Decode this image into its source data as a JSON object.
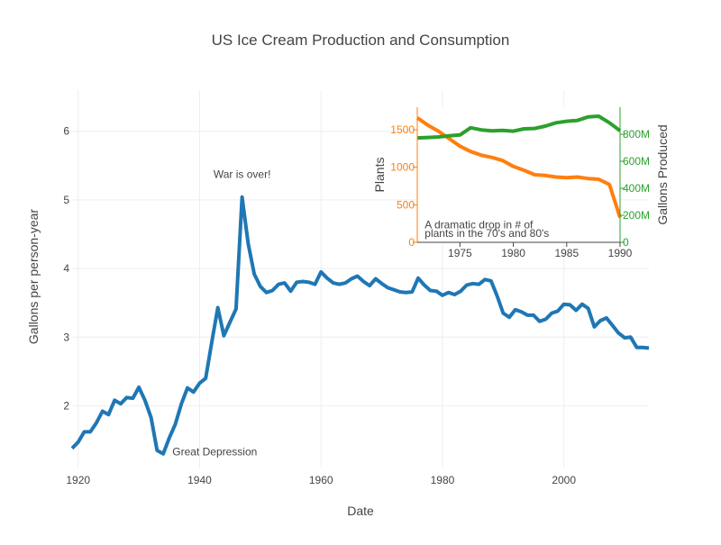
{
  "chart_data": [
    {
      "type": "line",
      "title": "US Ice Cream Production and Consumption",
      "xlabel": "Date",
      "ylabel": "Gallons per person-year",
      "xlim": [
        1919,
        2014
      ],
      "ylim": [
        1.1,
        6.6
      ],
      "xticks": [
        1920,
        1940,
        1960,
        1980,
        2000
      ],
      "yticks": [
        2,
        3,
        4,
        5,
        6
      ],
      "grid": true,
      "series": [
        {
          "color": "#1f77b4",
          "x": [
            1919,
            1920,
            1921,
            1922,
            1923,
            1924,
            1925,
            1926,
            1927,
            1928,
            1929,
            1930,
            1931,
            1932,
            1933,
            1934,
            1935,
            1936,
            1937,
            1938,
            1939,
            1940,
            1941,
            1942,
            1943,
            1944,
            1945,
            1946,
            1947,
            1948,
            1949,
            1950,
            1951,
            1952,
            1953,
            1954,
            1955,
            1956,
            1957,
            1958,
            1959,
            1960,
            1961,
            1962,
            1963,
            1964,
            1965,
            1966,
            1967,
            1968,
            1969,
            1970,
            1971,
            1972,
            1973,
            1974,
            1975,
            1976,
            1977,
            1978,
            1979,
            1980,
            1981,
            1982,
            1983,
            1984,
            1985,
            1986,
            1987,
            1988,
            1989,
            1990,
            1991,
            1992,
            1993,
            1994,
            1995,
            1996,
            1997,
            1998,
            1999,
            2000,
            2001,
            2002,
            2003,
            2004,
            2005,
            2006,
            2007,
            2008,
            2009,
            2010,
            2011,
            2012,
            2013,
            2014
          ],
          "y": [
            1.38,
            1.47,
            1.62,
            1.62,
            1.75,
            1.92,
            1.87,
            2.08,
            2.03,
            2.12,
            2.11,
            2.27,
            2.08,
            1.83,
            1.35,
            1.3,
            1.53,
            1.73,
            2.03,
            2.26,
            2.2,
            2.33,
            2.4,
            2.92,
            3.43,
            3.02,
            3.22,
            3.41,
            5.04,
            4.36,
            3.92,
            3.74,
            3.65,
            3.68,
            3.77,
            3.79,
            3.67,
            3.8,
            3.81,
            3.8,
            3.77,
            3.95,
            3.86,
            3.79,
            3.77,
            3.79,
            3.85,
            3.89,
            3.81,
            3.75,
            3.85,
            3.78,
            3.72,
            3.69,
            3.66,
            3.65,
            3.66,
            3.86,
            3.76,
            3.68,
            3.67,
            3.61,
            3.65,
            3.62,
            3.67,
            3.76,
            3.78,
            3.77,
            3.84,
            3.82,
            3.6,
            3.35,
            3.29,
            3.4,
            3.37,
            3.32,
            3.32,
            3.23,
            3.26,
            3.35,
            3.38,
            3.48,
            3.47,
            3.39,
            3.48,
            3.42,
            3.15,
            3.24,
            3.28,
            3.17,
            3.06,
            2.99,
            3.0,
            2.85,
            2.85,
            2.84
          ]
        }
      ],
      "annotations": [
        {
          "text": "War is over!",
          "x": 1947,
          "y": 5.37
        },
        {
          "text": "Great Depression",
          "x": 1942.5,
          "y": 1.33
        }
      ]
    },
    {
      "type": "line",
      "x_range": [
        1971,
        1990
      ],
      "xticks": [
        1975,
        1980,
        1985,
        1990
      ],
      "y_left": {
        "label": "Plants",
        "range": [
          0,
          1800
        ],
        "ticks": [
          0,
          500,
          1000,
          1500
        ],
        "color": "#ff7f0e"
      },
      "y_right": {
        "label": "Gallons Produced",
        "range": [
          0,
          1000
        ],
        "ticks": [
          0,
          200,
          400,
          600,
          800
        ],
        "tick_labels": [
          "0",
          "200M",
          "400M",
          "600M",
          "800M"
        ],
        "color": "#2ca02c"
      },
      "series": [
        {
          "axis": "left",
          "color": "#ff7f0e",
          "x": [
            1971,
            1972,
            1973,
            1974,
            1975,
            1976,
            1977,
            1978,
            1979,
            1980,
            1981,
            1982,
            1983,
            1984,
            1985,
            1986,
            1987,
            1988,
            1989,
            1990
          ],
          "y": [
            1660,
            1560,
            1480,
            1380,
            1280,
            1210,
            1160,
            1130,
            1090,
            1010,
            960,
            900,
            890,
            870,
            860,
            870,
            850,
            840,
            770,
            330
          ]
        },
        {
          "axis": "right",
          "color": "#2ca02c",
          "x": [
            1971,
            1972,
            1973,
            1974,
            1975,
            1976,
            1977,
            1978,
            1979,
            1980,
            1981,
            1982,
            1983,
            1984,
            1985,
            1986,
            1987,
            1988,
            1989,
            1990
          ],
          "y": [
            773,
            776,
            780,
            788,
            795,
            848,
            832,
            825,
            828,
            823,
            840,
            843,
            860,
            885,
            896,
            902,
            928,
            933,
            885,
            826
          ]
        }
      ],
      "annotations": [
        {
          "text": "A dramatic drop in # of",
          "x": 1971.7,
          "y": 235
        },
        {
          "text": "plants in the 70's and 80's",
          "x": 1971.7,
          "y": 120
        }
      ]
    }
  ]
}
